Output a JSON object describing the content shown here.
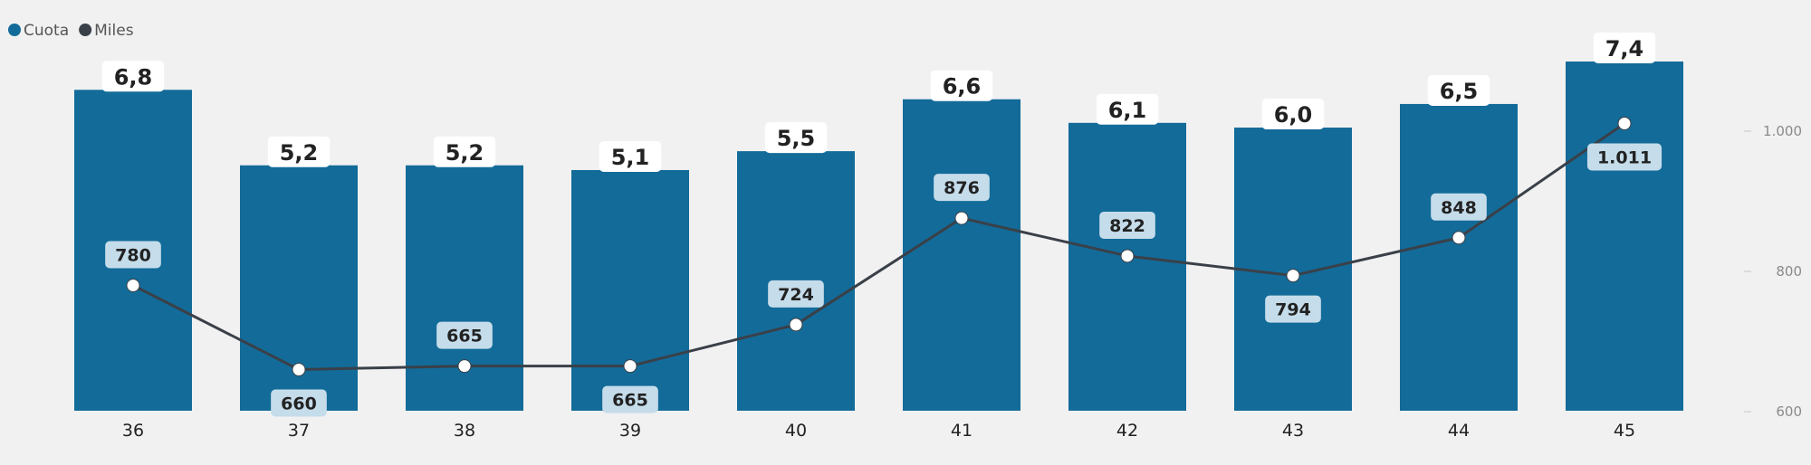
{
  "chart_data": {
    "type": "bar",
    "categories": [
      "36",
      "37",
      "38",
      "39",
      "40",
      "41",
      "42",
      "43",
      "44",
      "45"
    ],
    "series": [
      {
        "name": "Cuota",
        "kind": "bar",
        "values": [
          6.8,
          5.2,
          5.2,
          5.1,
          5.5,
          6.6,
          6.1,
          6.0,
          6.5,
          7.4
        ],
        "value_labels": [
          "6,8",
          "5,2",
          "5,2",
          "5,1",
          "5,5",
          "6,6",
          "6,1",
          "6,0",
          "6,5",
          "7,4"
        ],
        "color": "#136b99"
      },
      {
        "name": "Miles",
        "kind": "line",
        "values": [
          780,
          660,
          665,
          665,
          724,
          876,
          822,
          794,
          848,
          1011
        ],
        "value_labels": [
          "780",
          "660",
          "665",
          "665",
          "724",
          "876",
          "822",
          "794",
          "848",
          "1.011"
        ],
        "color": "#3a4048"
      }
    ],
    "y2": {
      "ticks": [
        600,
        800,
        1000
      ],
      "tick_labels": [
        "600",
        "800",
        "1.000"
      ],
      "position": "right"
    },
    "legend": {
      "position": "top-left"
    },
    "grid": false
  }
}
